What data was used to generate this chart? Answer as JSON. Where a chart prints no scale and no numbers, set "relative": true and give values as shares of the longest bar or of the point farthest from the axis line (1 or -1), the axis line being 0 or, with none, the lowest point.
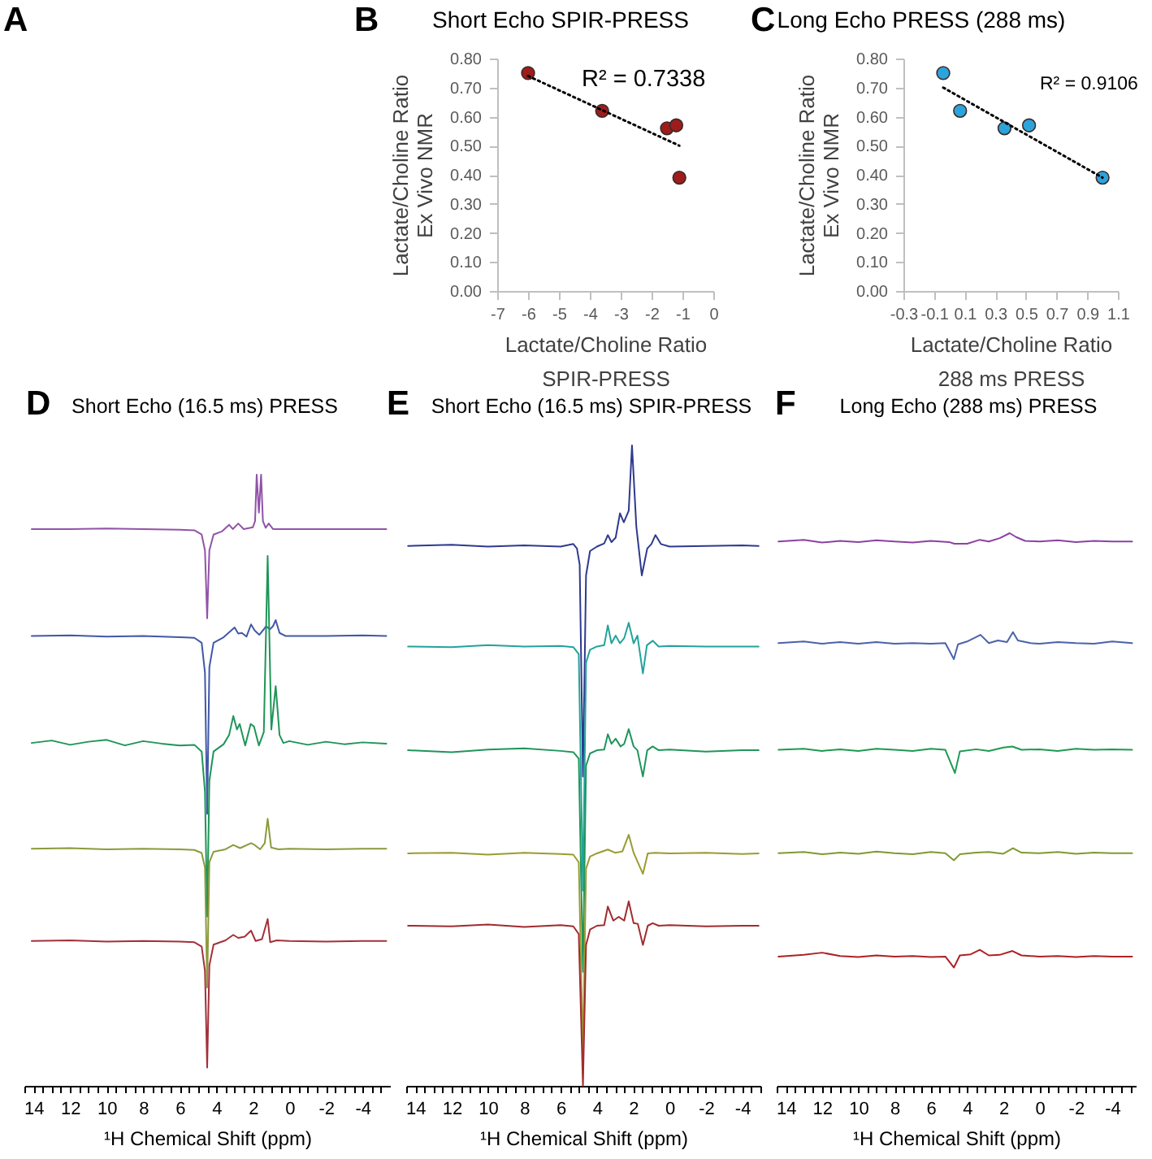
{
  "chart_data": [
    {
      "type": "other",
      "annotations": [
        "A"
      ]
    },
    {
      "type": "scatter",
      "title": "Short Echo SPIR-PRESS",
      "xlabel": "Lactate/Choline Ratio\nSPIR-PRESS",
      "ylabel": "Lactate/Choline Ratio\nEx Vivo NMR",
      "annotations": [
        "B",
        "R² = 0.7338"
      ],
      "xlim": [
        -7,
        0
      ],
      "ylim": [
        0,
        0.8
      ],
      "xticks": [
        -7,
        -6,
        -5,
        -4,
        -3,
        -2,
        -1,
        0
      ],
      "yticks": [
        {
          "value": 0,
          "label": "0.00"
        },
        {
          "value": 0.1,
          "label": "0.10"
        },
        {
          "value": 0.2,
          "label": "0.20"
        },
        {
          "value": 0.3,
          "label": "0.30"
        },
        {
          "value": 0.4,
          "label": "0.40"
        },
        {
          "value": 0.5,
          "label": "0.50"
        },
        {
          "value": 0.6,
          "label": "0.60"
        },
        {
          "value": 0.7,
          "label": "0.70"
        },
        {
          "value": 0.8,
          "label": "0.80"
        }
      ],
      "marker": "circle",
      "series": [
        {
          "type": "scatter",
          "color": "#9e1c1c",
          "x": [
            -6.0,
            -3.6,
            -1.5,
            -1.2,
            -1.1
          ],
          "values": [
            0.75,
            0.62,
            0.56,
            0.57,
            0.39
          ]
        },
        {
          "type": "line",
          "color": "#000000",
          "line_style": "dotted",
          "marker": "none",
          "x": [
            -6.0,
            -1.1
          ],
          "values": [
            0.74,
            0.5
          ]
        }
      ]
    },
    {
      "type": "scatter",
      "title": "Long Echo PRESS (288 ms)",
      "xlabel": "Lactate/Choline Ratio\n288 ms PRESS",
      "ylabel": "Lactate/Choline Ratio\nEx Vivo NMR",
      "annotations": [
        "C",
        "R² = 0.9106"
      ],
      "xlim": [
        -0.3,
        1.1
      ],
      "ylim": [
        0,
        0.8
      ],
      "xticks": [
        -0.3,
        -0.1,
        0.1,
        0.3,
        0.5,
        0.7,
        0.9,
        1.1
      ],
      "yticks": [
        {
          "value": 0,
          "label": "0.00"
        },
        {
          "value": 0.1,
          "label": "0.10"
        },
        {
          "value": 0.2,
          "label": "0.20"
        },
        {
          "value": 0.3,
          "label": "0.30"
        },
        {
          "value": 0.4,
          "label": "0.40"
        },
        {
          "value": 0.5,
          "label": "0.50"
        },
        {
          "value": 0.6,
          "label": "0.60"
        },
        {
          "value": 0.7,
          "label": "0.70"
        },
        {
          "value": 0.8,
          "label": "0.80"
        }
      ],
      "marker": "circle",
      "series": [
        {
          "type": "scatter",
          "color": "#2ba4dc",
          "x": [
            -0.04,
            0.07,
            0.36,
            0.52,
            1.0
          ],
          "values": [
            0.75,
            0.62,
            0.56,
            0.57,
            0.39
          ]
        },
        {
          "type": "line",
          "color": "#000000",
          "line_style": "dotted",
          "marker": "none",
          "x": [
            -0.04,
            1.0
          ],
          "values": [
            0.7,
            0.39
          ]
        }
      ]
    },
    {
      "type": "line",
      "relative": true,
      "title": "Short Echo (16.5 ms) PRESS",
      "xlabel": "¹H Chemical Shift (ppm)",
      "annotations": [
        "D"
      ],
      "xlim": [
        14.5,
        -5.5
      ],
      "xticks": [
        {
          "value": 14.5,
          "label": null
        },
        14,
        {
          "value": 13.5,
          "label": null
        },
        {
          "value": 13,
          "label": null
        },
        {
          "value": 12.5,
          "label": null
        },
        12,
        {
          "value": 11.5,
          "label": null
        },
        {
          "value": 11,
          "label": null
        },
        {
          "value": 10.5,
          "label": null
        },
        10,
        {
          "value": 9.5,
          "label": null
        },
        {
          "value": 9,
          "label": null
        },
        {
          "value": 8.5,
          "label": null
        },
        8,
        {
          "value": 7.5,
          "label": null
        },
        {
          "value": 7,
          "label": null
        },
        {
          "value": 6.5,
          "label": null
        },
        6,
        {
          "value": 5.5,
          "label": null
        },
        {
          "value": 5,
          "label": null
        },
        {
          "value": 4.5,
          "label": null
        },
        4,
        {
          "value": 3.5,
          "label": null
        },
        {
          "value": 3,
          "label": null
        },
        {
          "value": 2.5,
          "label": null
        },
        2,
        {
          "value": 1.5,
          "label": null
        },
        {
          "value": 1,
          "label": null
        },
        {
          "value": 0.5,
          "label": null
        },
        0,
        {
          "value": -0.5,
          "label": null
        },
        {
          "value": -1,
          "label": null
        },
        {
          "value": -1.5,
          "label": null
        },
        -2,
        {
          "value": -2.5,
          "label": null
        },
        {
          "value": -3,
          "label": null
        },
        {
          "value": -3.5,
          "label": null
        },
        -4,
        {
          "value": -4.5,
          "label": null
        },
        {
          "value": -5,
          "label": null
        }
      ],
      "series": [
        {
          "color": "#9153a8",
          "x": [
            14.1,
            12,
            10,
            8,
            6,
            5.2,
            4.8,
            4.62,
            4.5,
            4.38,
            4.15,
            3.7,
            3.3,
            3.1,
            2.8,
            2.5,
            2.0,
            1.88,
            1.79,
            1.67,
            1.55,
            1.45,
            1.3,
            1.13,
            0.9,
            0,
            -2,
            -4,
            -5.3
          ],
          "values": [
            0.911,
            0.911,
            0.912,
            0.911,
            0.91,
            0.909,
            0.902,
            0.876,
            0.765,
            0.876,
            0.902,
            0.907,
            0.918,
            0.911,
            0.92,
            0.911,
            0.914,
            0.924,
            1.0,
            0.938,
            1.0,
            0.924,
            0.913,
            0.92,
            0.911,
            0.911,
            0.911,
            0.911,
            0.911
          ]
        },
        {
          "color": "#4158a6",
          "x": [
            14.1,
            12,
            10,
            8,
            6,
            5.2,
            4.8,
            4.62,
            4.5,
            4.38,
            4.15,
            3.6,
            3.0,
            2.8,
            2.6,
            2.35,
            2.1,
            1.9,
            1.65,
            1.4,
            1.28,
            1.07,
            0.9,
            0.75,
            0.54,
            0.2,
            -2,
            -4,
            -5.3
          ],
          "values": [
            0.736,
            0.737,
            0.735,
            0.736,
            0.734,
            0.733,
            0.725,
            0.676,
            0.445,
            0.685,
            0.725,
            0.734,
            0.75,
            0.74,
            0.741,
            0.735,
            0.755,
            0.745,
            0.738,
            0.747,
            0.752,
            0.747,
            0.752,
            0.762,
            0.741,
            0.736,
            0.736,
            0.737,
            0.736
          ]
        },
        {
          "color": "#1f9558",
          "x": [
            14.1,
            13,
            12,
            11,
            10,
            9,
            8,
            7,
            6,
            5.2,
            4.8,
            4.62,
            4.5,
            4.38,
            4.15,
            3.6,
            3.3,
            3.07,
            2.87,
            2.72,
            2.42,
            2.12,
            1.94,
            1.67,
            1.4,
            1.19,
            0.99,
            0.75,
            0.54,
            0.33,
            0,
            -1,
            -2,
            -3,
            -4,
            -5.3
          ],
          "values": [
            0.561,
            0.565,
            0.558,
            0.563,
            0.566,
            0.557,
            0.564,
            0.56,
            0.557,
            0.558,
            0.547,
            0.481,
            0.277,
            0.499,
            0.547,
            0.559,
            0.574,
            0.605,
            0.583,
            0.592,
            0.557,
            0.592,
            0.588,
            0.557,
            0.579,
            0.867,
            0.583,
            0.654,
            0.574,
            0.561,
            0.564,
            0.558,
            0.563,
            0.559,
            0.562,
            0.56
          ]
        },
        {
          "color": "#8b9a3c",
          "x": [
            14.1,
            12,
            10,
            8,
            6,
            5.2,
            4.8,
            4.62,
            4.5,
            4.38,
            4.15,
            3.5,
            3.07,
            2.7,
            2.1,
            1.9,
            1.6,
            1.35,
            1.19,
            1.0,
            0.6,
            0,
            -2,
            -4,
            -5.3
          ],
          "values": [
            0.388,
            0.389,
            0.387,
            0.388,
            0.387,
            0.386,
            0.381,
            0.357,
            0.161,
            0.366,
            0.383,
            0.387,
            0.394,
            0.389,
            0.397,
            0.394,
            0.387,
            0.397,
            0.437,
            0.39,
            0.387,
            0.388,
            0.387,
            0.388,
            0.388
          ]
        },
        {
          "color": "#a3303a",
          "x": [
            14.1,
            12,
            10,
            8,
            6,
            5.2,
            4.8,
            4.62,
            4.5,
            4.38,
            4.15,
            3.5,
            3.07,
            2.8,
            2.45,
            2.1,
            1.85,
            1.5,
            1.19,
            1.05,
            0.7,
            0,
            -2,
            -4,
            -5.3
          ],
          "values": [
            0.237,
            0.238,
            0.236,
            0.237,
            0.236,
            0.235,
            0.228,
            0.188,
            0.03,
            0.197,
            0.231,
            0.238,
            0.247,
            0.242,
            0.244,
            0.254,
            0.237,
            0.24,
            0.273,
            0.235,
            0.238,
            0.237,
            0.236,
            0.237,
            0.237
          ]
        }
      ]
    },
    {
      "type": "line",
      "relative": true,
      "title": "Short Echo (16.5 ms) SPIR-PRESS",
      "xlabel": "¹H Chemical Shift (ppm)",
      "annotations": [
        "E"
      ],
      "xlim": [
        14.5,
        -5.0
      ],
      "xticks": [
        {
          "value": 14.5,
          "label": null
        },
        14,
        {
          "value": 13.5,
          "label": null
        },
        {
          "value": 13,
          "label": null
        },
        {
          "value": 12.5,
          "label": null
        },
        12,
        {
          "value": 11.5,
          "label": null
        },
        {
          "value": 11,
          "label": null
        },
        {
          "value": 10.5,
          "label": null
        },
        10,
        {
          "value": 9.5,
          "label": null
        },
        {
          "value": 9,
          "label": null
        },
        {
          "value": 8.5,
          "label": null
        },
        8,
        {
          "value": 7.5,
          "label": null
        },
        {
          "value": 7,
          "label": null
        },
        {
          "value": 6.5,
          "label": null
        },
        6,
        {
          "value": 5.5,
          "label": null
        },
        {
          "value": 5,
          "label": null
        },
        {
          "value": 4.5,
          "label": null
        },
        4,
        {
          "value": 3.5,
          "label": null
        },
        {
          "value": 3,
          "label": null
        },
        {
          "value": 2.5,
          "label": null
        },
        2,
        {
          "value": 1.5,
          "label": null
        },
        {
          "value": 1,
          "label": null
        },
        {
          "value": 0.5,
          "label": null
        },
        0,
        {
          "value": -0.5,
          "label": null
        },
        {
          "value": -1,
          "label": null
        },
        {
          "value": -1.5,
          "label": null
        },
        -2,
        {
          "value": -2.5,
          "label": null
        },
        {
          "value": -3,
          "label": null
        },
        {
          "value": -3.5,
          "label": null
        },
        -4,
        {
          "value": -4.5,
          "label": null
        },
        {
          "value": -5,
          "label": null
        }
      ],
      "series": [
        {
          "color": "#2e3a8e",
          "x": [
            14.4,
            12,
            10,
            8,
            6,
            5.3,
            5.1,
            4.95,
            4.77,
            4.6,
            4.38,
            4.0,
            3.6,
            3.4,
            3.2,
            2.97,
            2.73,
            2.52,
            2.25,
            2.07,
            1.83,
            1.53,
            1.23,
            1.0,
            0.78,
            0.48,
            0,
            -2,
            -4,
            -4.9
          ],
          "values": [
            0.843,
            0.845,
            0.842,
            0.844,
            0.842,
            0.846,
            0.839,
            0.814,
            0.483,
            0.797,
            0.835,
            0.842,
            0.847,
            0.86,
            0.849,
            0.856,
            0.894,
            0.88,
            0.898,
            1.0,
            0.873,
            0.797,
            0.839,
            0.846,
            0.86,
            0.846,
            0.842,
            0.843,
            0.844,
            0.843
          ]
        },
        {
          "color": "#23a39b",
          "x": [
            14.4,
            12,
            10,
            8,
            6,
            5.3,
            5.0,
            4.77,
            4.6,
            4.38,
            4.0,
            3.6,
            3.4,
            3.2,
            2.97,
            2.73,
            2.5,
            2.25,
            1.98,
            1.77,
            1.47,
            1.25,
            0.93,
            0.6,
            0,
            -2,
            -4,
            -4.9
          ],
          "values": [
            0.686,
            0.685,
            0.688,
            0.686,
            0.687,
            0.685,
            0.674,
            0.305,
            0.661,
            0.681,
            0.686,
            0.688,
            0.719,
            0.691,
            0.703,
            0.691,
            0.699,
            0.723,
            0.691,
            0.703,
            0.644,
            0.688,
            0.695,
            0.686,
            0.687,
            0.686,
            0.686,
            0.686
          ]
        },
        {
          "color": "#1f955c",
          "x": [
            14.4,
            12,
            10,
            8,
            6,
            5.3,
            5.0,
            4.77,
            4.6,
            4.38,
            4.0,
            3.6,
            3.4,
            3.2,
            2.97,
            2.7,
            2.5,
            2.25,
            1.98,
            1.77,
            1.47,
            1.23,
            0.93,
            0.6,
            0,
            -2,
            -4,
            -4.9
          ],
          "values": [
            0.524,
            0.521,
            0.525,
            0.527,
            0.523,
            0.521,
            0.511,
            0.178,
            0.5,
            0.519,
            0.524,
            0.525,
            0.549,
            0.534,
            0.542,
            0.53,
            0.534,
            0.557,
            0.53,
            0.524,
            0.483,
            0.524,
            0.53,
            0.524,
            0.525,
            0.522,
            0.524,
            0.524
          ]
        },
        {
          "color": "#9b9b32",
          "x": [
            14.4,
            12,
            10,
            8,
            6,
            5.3,
            5.0,
            4.77,
            4.6,
            4.38,
            4.0,
            3.4,
            3.0,
            2.6,
            2.25,
            1.98,
            1.47,
            1.2,
            0.8,
            0,
            -2,
            -4,
            -4.9
          ],
          "values": [
            0.363,
            0.364,
            0.361,
            0.364,
            0.362,
            0.361,
            0.349,
            0.051,
            0.339,
            0.358,
            0.363,
            0.369,
            0.364,
            0.366,
            0.392,
            0.364,
            0.331,
            0.363,
            0.364,
            0.363,
            0.364,
            0.362,
            0.363
          ]
        },
        {
          "color": "#a12b2e",
          "x": [
            14.4,
            12,
            10,
            8,
            6,
            5.3,
            5.0,
            4.77,
            4.6,
            4.38,
            4.0,
            3.6,
            3.4,
            3.1,
            2.8,
            2.5,
            2.25,
            1.98,
            1.75,
            1.47,
            1.2,
            0.93,
            0.6,
            0,
            -2,
            -4,
            -4.9
          ],
          "values": [
            0.25,
            0.249,
            0.252,
            0.248,
            0.251,
            0.249,
            0.237,
            0.0,
            0.22,
            0.244,
            0.25,
            0.251,
            0.28,
            0.258,
            0.264,
            0.258,
            0.288,
            0.254,
            0.253,
            0.22,
            0.25,
            0.254,
            0.25,
            0.251,
            0.249,
            0.25,
            0.25
          ]
        }
      ]
    },
    {
      "type": "line",
      "relative": true,
      "title": "Long Echo (288 ms) PRESS",
      "xlabel": "¹H Chemical Shift (ppm)",
      "annotations": [
        "F"
      ],
      "xlim": [
        14.5,
        -5.3
      ],
      "xticks": [
        {
          "value": 14.5,
          "label": null
        },
        14,
        {
          "value": 13.5,
          "label": null
        },
        {
          "value": 13,
          "label": null
        },
        {
          "value": 12.5,
          "label": null
        },
        12,
        {
          "value": 11.5,
          "label": null
        },
        {
          "value": 11,
          "label": null
        },
        {
          "value": 10.5,
          "label": null
        },
        10,
        {
          "value": 9.5,
          "label": null
        },
        {
          "value": 9,
          "label": null
        },
        {
          "value": 8.5,
          "label": null
        },
        8,
        {
          "value": 7.5,
          "label": null
        },
        {
          "value": 7,
          "label": null
        },
        {
          "value": 6.5,
          "label": null
        },
        6,
        {
          "value": 5.5,
          "label": null
        },
        {
          "value": 5,
          "label": null
        },
        {
          "value": 4.5,
          "label": null
        },
        4,
        {
          "value": 3.5,
          "label": null
        },
        {
          "value": 3,
          "label": null
        },
        {
          "value": 2.5,
          "label": null
        },
        2,
        {
          "value": 1.5,
          "label": null
        },
        {
          "value": 1,
          "label": null
        },
        {
          "value": 0.5,
          "label": null
        },
        0,
        {
          "value": -0.5,
          "label": null
        },
        {
          "value": -1,
          "label": null
        },
        {
          "value": -1.5,
          "label": null
        },
        -2,
        {
          "value": -2.5,
          "label": null
        },
        {
          "value": -3,
          "label": null
        },
        {
          "value": -3.5,
          "label": null
        },
        -4,
        {
          "value": -4.5,
          "label": null
        },
        {
          "value": -5,
          "label": null
        }
      ],
      "series": [
        {
          "color": "#8c41a4",
          "x": [
            14.4,
            13,
            12,
            11,
            10,
            9,
            8,
            7,
            6,
            5,
            4.7,
            4.0,
            3.3,
            2.8,
            2.2,
            1.65,
            1.3,
            0.8,
            0,
            -1,
            -2,
            -3,
            -4,
            -5.1
          ],
          "values": [
            0.985,
            0.988,
            0.983,
            0.986,
            0.984,
            0.987,
            0.985,
            0.983,
            0.986,
            0.984,
            0.981,
            0.981,
            0.988,
            0.985,
            0.991,
            1.0,
            0.993,
            0.986,
            0.985,
            0.987,
            0.984,
            0.986,
            0.985,
            0.985
          ]
        },
        {
          "color": "#4a62aa",
          "x": [
            14.4,
            13,
            12,
            11,
            10,
            9,
            8,
            7,
            6,
            5.2,
            4.73,
            4.5,
            4.0,
            3.26,
            2.8,
            2.3,
            1.8,
            1.47,
            1.2,
            0.5,
            0,
            -1,
            -2,
            -3,
            -4,
            -5.1
          ],
          "values": [
            0.801,
            0.804,
            0.8,
            0.803,
            0.8,
            0.803,
            0.8,
            0.801,
            0.8,
            0.801,
            0.772,
            0.799,
            0.804,
            0.816,
            0.801,
            0.806,
            0.803,
            0.821,
            0.806,
            0.801,
            0.8,
            0.803,
            0.801,
            0.8,
            0.804,
            0.801
          ]
        },
        {
          "color": "#1e9a50",
          "x": [
            14.4,
            13,
            12,
            11,
            10,
            9,
            8,
            7,
            6,
            5.2,
            4.67,
            4.4,
            3.5,
            2.8,
            2.0,
            1.5,
            1.0,
            0,
            -1,
            -2,
            -3,
            -4,
            -5.1
          ],
          "values": [
            0.608,
            0.61,
            0.606,
            0.609,
            0.606,
            0.61,
            0.608,
            0.606,
            0.61,
            0.608,
            0.566,
            0.605,
            0.609,
            0.606,
            0.612,
            0.614,
            0.608,
            0.609,
            0.606,
            0.61,
            0.608,
            0.609,
            0.608
          ]
        },
        {
          "color": "#7e9a30",
          "x": [
            14.4,
            13,
            12,
            11,
            10,
            9,
            8,
            7,
            6,
            5.2,
            4.73,
            4.4,
            3.5,
            2.8,
            2.0,
            1.47,
            1.0,
            0,
            -1,
            -2,
            -3,
            -4,
            -5.1
          ],
          "values": [
            0.421,
            0.423,
            0.419,
            0.422,
            0.42,
            0.424,
            0.421,
            0.419,
            0.423,
            0.421,
            0.408,
            0.419,
            0.422,
            0.423,
            0.42,
            0.43,
            0.422,
            0.421,
            0.423,
            0.42,
            0.422,
            0.421,
            0.421
          ]
        },
        {
          "color": "#ad2224",
          "x": [
            14.4,
            13,
            12,
            11,
            10,
            9,
            8,
            7,
            6,
            5.2,
            4.73,
            4.4,
            3.8,
            3.3,
            2.8,
            2.2,
            1.5,
            1.0,
            0,
            -1,
            -2,
            -3,
            -4,
            -5.1
          ],
          "values": [
            0.234,
            0.237,
            0.241,
            0.235,
            0.233,
            0.236,
            0.234,
            0.235,
            0.233,
            0.234,
            0.214,
            0.236,
            0.238,
            0.246,
            0.236,
            0.237,
            0.244,
            0.236,
            0.234,
            0.235,
            0.233,
            0.235,
            0.234,
            0.234
          ]
        }
      ]
    }
  ]
}
